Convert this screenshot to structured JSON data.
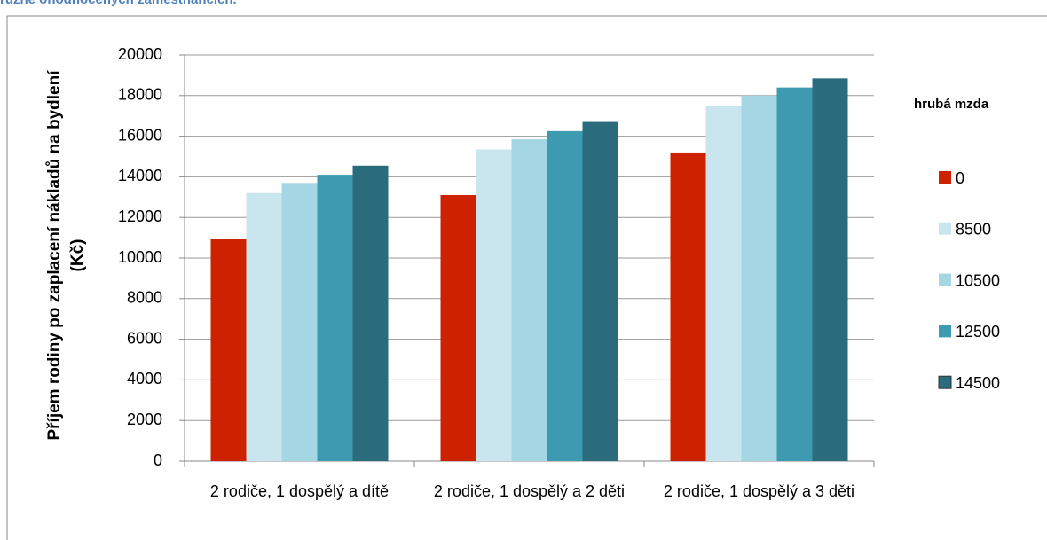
{
  "chart_data": {
    "type": "bar",
    "title": "různě ohodnocených zaměstnancích.",
    "y_label": "Příjem rodiny po zaplacení nákladů na bydlení (Kč)",
    "legend_title": "hrubá mzda",
    "legend_position": "right",
    "categories": [
      "2 rodiče, 1 dospělý a dítě",
      "2 rodiče, 1 dospělý a 2 děti",
      "2 rodiče, 1 dospělý a 3 děti"
    ],
    "series": [
      {
        "name": "0",
        "color": "#cc2200",
        "values": [
          10950,
          13100,
          15200
        ]
      },
      {
        "name": "8500",
        "color": "#c9e6ef",
        "values": [
          13200,
          15350,
          17500
        ]
      },
      {
        "name": "10500",
        "color": "#a5d6e3",
        "values": [
          13700,
          15850,
          18000
        ]
      },
      {
        "name": "12500",
        "color": "#3d9ab0",
        "values": [
          14100,
          16250,
          18400
        ]
      },
      {
        "name": "14500",
        "color": "#2a6b7c",
        "values": [
          14550,
          16700,
          18850
        ]
      }
    ],
    "ylim": [
      0,
      20000
    ],
    "yticks": [
      0,
      2000,
      4000,
      6000,
      8000,
      10000,
      12000,
      14000,
      16000,
      18000,
      20000
    ],
    "grid": true
  }
}
